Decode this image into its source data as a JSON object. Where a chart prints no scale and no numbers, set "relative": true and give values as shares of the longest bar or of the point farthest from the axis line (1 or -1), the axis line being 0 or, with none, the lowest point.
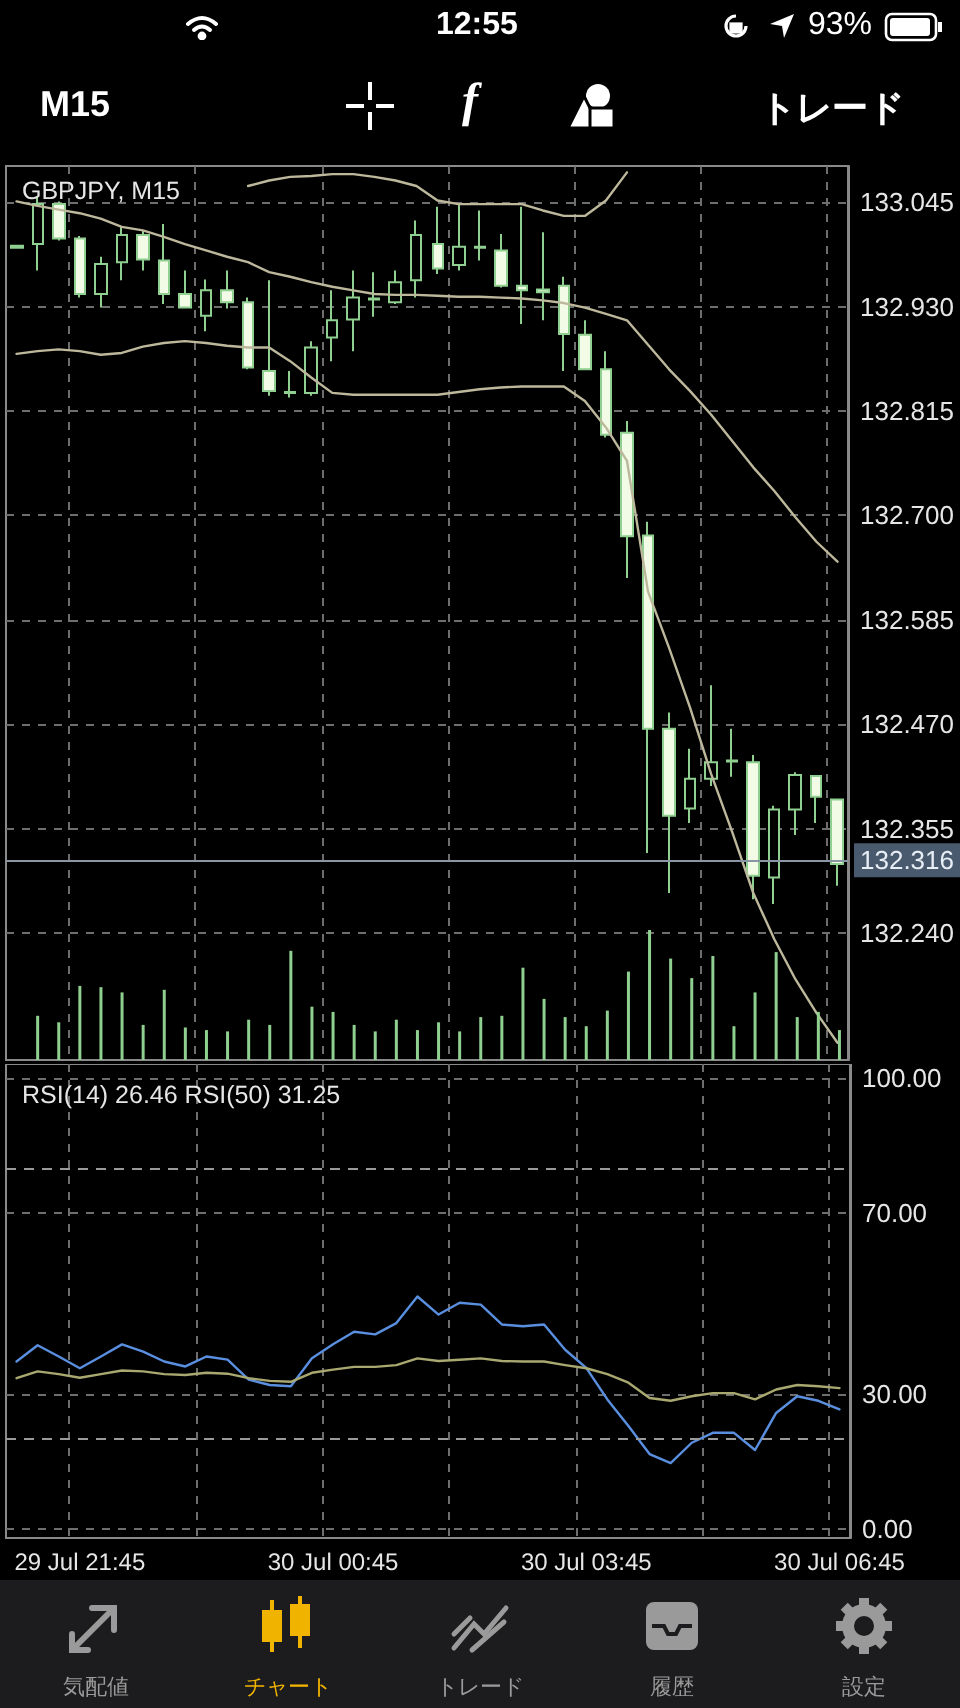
{
  "chart_data": [
    {
      "type": "candlestick",
      "title": "GBPJPY, M15",
      "annotations": [
        "12:55",
        "93%",
        "M15",
        "f",
        "トレード",
        "気配値",
        "チャート",
        "トレード",
        "履歴",
        "設定"
      ],
      "categories": [
        null,
        null,
        null,
        null,
        null,
        null,
        null,
        null,
        null,
        null,
        null,
        null,
        null,
        null,
        null,
        null,
        null,
        null,
        null,
        null,
        null,
        null,
        null,
        null,
        null,
        null,
        null,
        null,
        null,
        null,
        null,
        null,
        null,
        null,
        null,
        null,
        null,
        null,
        null,
        null
      ],
      "color": "#8fcf8f",
      "ohlc": [
        [
          132.995,
          132.998,
          132.994,
          132.997
        ],
        [
          132.999,
          133.051,
          132.97,
          133.043
        ],
        [
          133.043,
          133.046,
          133.003,
          133.005
        ],
        [
          133.005,
          133.008,
          132.94,
          132.944
        ],
        [
          132.944,
          132.985,
          132.929,
          132.977
        ],
        [
          132.979,
          133.018,
          132.959,
          133.009
        ],
        [
          133.009,
          133.014,
          132.97,
          132.982
        ],
        [
          132.981,
          133.021,
          132.933,
          132.944
        ],
        [
          132.944,
          132.97,
          132.928,
          132.929
        ],
        [
          132.92,
          132.96,
          132.903,
          132.948
        ],
        [
          132.948,
          132.97,
          132.928,
          132.935
        ],
        [
          132.935,
          132.94,
          132.861,
          132.863
        ],
        [
          132.859,
          132.959,
          132.832,
          132.837
        ],
        [
          132.835,
          132.859,
          132.83,
          132.836
        ],
        [
          132.835,
          132.892,
          132.832,
          132.885
        ],
        [
          132.896,
          132.948,
          132.87,
          132.915
        ],
        [
          132.916,
          132.97,
          132.881,
          132.94
        ],
        [
          132.938,
          132.968,
          132.919,
          132.939
        ],
        [
          132.935,
          132.97,
          132.933,
          132.957
        ],
        [
          132.959,
          133.025,
          132.94,
          133.009
        ],
        [
          132.999,
          133.04,
          132.966,
          132.972
        ],
        [
          132.976,
          133.043,
          132.97,
          132.996
        ],
        [
          132.995,
          133.036,
          132.981,
          132.996
        ],
        [
          132.992,
          133.01,
          132.951,
          132.953
        ],
        [
          132.953,
          133.04,
          132.911,
          132.948
        ],
        [
          132.949,
          133.012,
          132.915,
          132.946
        ],
        [
          132.953,
          132.963,
          132.859,
          132.9
        ],
        [
          132.899,
          132.915,
          132.861,
          132.861
        ],
        [
          132.861,
          132.881,
          132.786,
          132.789
        ],
        [
          132.791,
          132.804,
          132.631,
          132.677
        ],
        [
          132.678,
          132.693,
          132.328,
          132.465
        ],
        [
          132.465,
          132.483,
          132.284,
          132.369
        ],
        [
          132.377,
          132.443,
          132.361,
          132.41
        ],
        [
          132.41,
          132.513,
          132.402,
          132.428
        ],
        [
          132.429,
          132.465,
          132.412,
          132.43
        ],
        [
          132.428,
          132.436,
          132.277,
          132.303
        ],
        [
          132.301,
          132.38,
          132.272,
          132.376
        ],
        [
          132.376,
          132.417,
          132.348,
          132.414
        ],
        [
          132.413,
          132.414,
          132.361,
          132.39
        ],
        [
          132.387,
          132.387,
          132.292,
          132.316
        ]
      ],
      "series": [
        {
          "type": "line",
          "color": "#bdb89c",
          "values": [
            null,
            null,
            null,
            null,
            null,
            null,
            null,
            null,
            null,
            null,
            null,
            133.063,
            133.069,
            133.073,
            133.074,
            133.076,
            133.076,
            133.073,
            133.069,
            133.063,
            133.047,
            133.043,
            133.043,
            133.043,
            133.043,
            133.036,
            133.03,
            133.03,
            133.047,
            133.078,
            null,
            null,
            null,
            null,
            null,
            null,
            null,
            null,
            null,
            null
          ]
        },
        {
          "type": "line",
          "color": "#bdb89c",
          "values": [
            133.046,
            133.041,
            133.037,
            133.033,
            133.027,
            133.018,
            133.014,
            133.007,
            132.999,
            132.992,
            132.985,
            132.979,
            132.968,
            132.963,
            132.957,
            132.952,
            132.948,
            132.944,
            132.943,
            132.943,
            132.942,
            132.941,
            132.941,
            132.94,
            132.939,
            132.937,
            132.934,
            132.929,
            132.922,
            132.915,
            132.888,
            132.861,
            132.837,
            132.811,
            132.782,
            132.753,
            132.727,
            132.698,
            132.671,
            132.649
          ]
        },
        {
          "type": "line",
          "color": "#bdb89c",
          "values": [
            132.878,
            132.881,
            132.883,
            132.881,
            132.877,
            132.879,
            132.886,
            132.89,
            132.892,
            132.89,
            132.887,
            132.885,
            132.885,
            132.87,
            132.852,
            132.835,
            132.833,
            132.833,
            132.833,
            132.833,
            132.833,
            132.836,
            132.839,
            132.841,
            132.842,
            132.842,
            132.842,
            132.826,
            132.797,
            132.76,
            132.616,
            132.554,
            132.488,
            132.415,
            132.351,
            132.284,
            132.233,
            132.189,
            132.152,
            132.119
          ]
        }
      ],
      "ylim": [
        132.1,
        133.085
      ],
      "yticks": [
        {
          "value": 133.045,
          "label": "133.045"
        },
        {
          "value": 132.93,
          "label": "132.930"
        },
        {
          "value": 132.815,
          "label": "132.815"
        },
        {
          "value": 132.7,
          "label": "132.700"
        },
        {
          "value": 132.585,
          "label": "132.585"
        },
        {
          "value": 132.47,
          "label": "132.470"
        },
        {
          "value": 132.355,
          "label": "132.355"
        },
        {
          "value": 132.24,
          "label": "132.240"
        }
      ],
      "ref_lines": [
        {
          "axis": "y",
          "value": 132.316,
          "label": "132.316",
          "color": "#8a96a4"
        }
      ],
      "grid": true,
      "marker": "none",
      "line_style": "solid",
      "tick_labels": "y"
    },
    {
      "type": "bar",
      "relative": true,
      "categories": [
        null,
        null,
        null,
        null,
        null,
        null,
        null,
        null,
        null,
        null,
        null,
        null,
        null,
        null,
        null,
        null,
        null,
        null,
        null,
        null,
        null,
        null,
        null,
        null,
        null,
        null,
        null,
        null,
        null,
        null,
        null,
        null,
        null,
        null,
        null,
        null,
        null,
        null,
        null,
        null
      ],
      "values": [
        null,
        0.34,
        0.29,
        0.57,
        0.56,
        0.52,
        0.27,
        0.54,
        0.25,
        0.23,
        0.22,
        0.31,
        0.27,
        0.84,
        0.41,
        0.37,
        0.27,
        0.22,
        0.31,
        0.23,
        0.29,
        0.22,
        0.33,
        0.34,
        0.71,
        0.47,
        0.33,
        0.26,
        0.38,
        0.68,
        1,
        0.78,
        0.63,
        0.8,
        0.26,
        0.52,
        0.83,
        0.33,
        0.37,
        0.23
      ],
      "color": "#8fcf8f",
      "tick_labels": false
    },
    {
      "type": "line",
      "title": "RSI(14) 26.46 RSI(50) 31.25",
      "categories": [
        null,
        null,
        null,
        "29 Jul 21:45",
        null,
        null,
        null,
        null,
        null,
        null,
        null,
        null,
        null,
        null,
        null,
        "30 Jul 00:45",
        null,
        null,
        null,
        null,
        null,
        null,
        null,
        null,
        null,
        null,
        null,
        "30 Jul 03:45",
        null,
        null,
        null,
        null,
        null,
        null,
        null,
        null,
        null,
        null,
        null,
        "30 Jul 06:45"
      ],
      "series": [
        {
          "color": "#5a8fe0",
          "values": [
            37.1,
            40.7,
            38.2,
            35.6,
            38.2,
            40.9,
            39.3,
            37.1,
            36.0,
            38.2,
            37.5,
            33.1,
            31.9,
            31.6,
            37.8,
            40.9,
            43.7,
            43.1,
            45.6,
            51.5,
            47.5,
            50.1,
            49.7,
            45.3,
            44.9,
            45.3,
            39.7,
            35.7,
            28.7,
            22.8,
            16.6,
            14.6,
            19.1,
            21.3,
            21.3,
            17.5,
            25.7,
            29.4,
            28.4,
            26.5
          ]
        },
        {
          "color": "#a8a870",
          "values": [
            33.4,
            34.9,
            34.3,
            33.5,
            34.3,
            35.1,
            34.9,
            34.3,
            34.1,
            34.6,
            34.4,
            33.4,
            32.8,
            32.6,
            34.6,
            35.3,
            35.9,
            35.9,
            36.3,
            37.8,
            37.2,
            37.5,
            37.8,
            37.2,
            37.1,
            37.1,
            36.3,
            35.6,
            34.3,
            32.4,
            29.0,
            28.4,
            29.4,
            30.1,
            30.1,
            28.7,
            30.9,
            31.9,
            31.6,
            31.2
          ]
        }
      ],
      "ylim": [
        -2,
        103
      ],
      "yticks": [
        {
          "value": 100,
          "label": "100.00"
        },
        {
          "value": 70,
          "label": "70.00"
        },
        {
          "value": 30,
          "label": "30.00"
        },
        {
          "value": 0,
          "label": "0.00"
        }
      ],
      "ref_lines": [
        {
          "axis": "y",
          "value": 80,
          "label": null,
          "color": "#9a9a9a",
          "line_style": "dashed"
        },
        {
          "axis": "y",
          "value": 20,
          "label": null,
          "color": "#9a9a9a",
          "line_style": "dashed"
        }
      ],
      "grid": true,
      "marker": "none",
      "line_style": "solid"
    }
  ]
}
